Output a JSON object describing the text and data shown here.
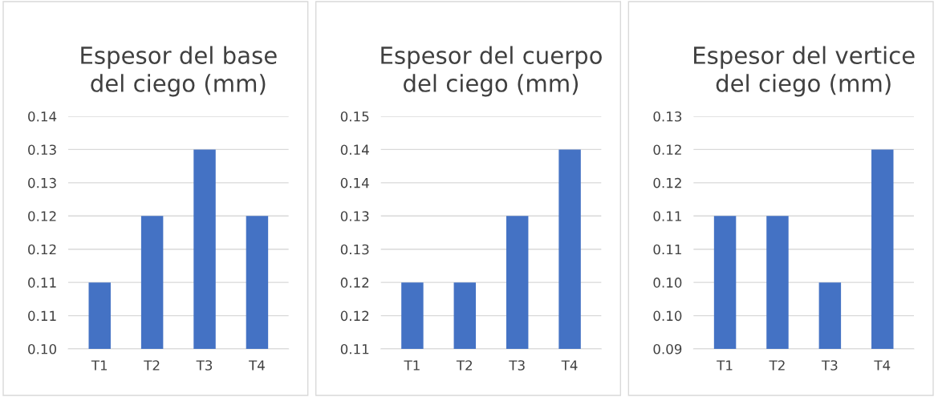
{
  "chart_data": [
    {
      "type": "bar",
      "title": "Espesor del base\ndel ciego (mm)",
      "categories": [
        "T1",
        "T2",
        "T3",
        "T4"
      ],
      "values": [
        0.11,
        0.12,
        0.13,
        0.12
      ],
      "color": "#4472c4",
      "ylim": [
        0.1,
        0.135
      ],
      "yticks": [
        {
          "value": 0.1,
          "label": "0.10"
        },
        {
          "value": 0.105,
          "label": "0.11"
        },
        {
          "value": 0.11,
          "label": "0.11"
        },
        {
          "value": 0.115,
          "label": "0.12"
        },
        {
          "value": 0.12,
          "label": "0.12"
        },
        {
          "value": 0.125,
          "label": "0.13"
        },
        {
          "value": 0.13,
          "label": "0.13"
        },
        {
          "value": 0.135,
          "label": "0.14"
        }
      ],
      "grid": "y"
    },
    {
      "type": "bar",
      "title": "Espesor del cuerpo\ndel ciego (mm)",
      "categories": [
        "T1",
        "T2",
        "T3",
        "T4"
      ],
      "values": [
        0.12,
        0.12,
        0.13,
        0.14
      ],
      "color": "#4472c4",
      "ylim": [
        0.11,
        0.145
      ],
      "yticks": [
        {
          "value": 0.11,
          "label": "0.11"
        },
        {
          "value": 0.115,
          "label": "0.12"
        },
        {
          "value": 0.12,
          "label": "0.12"
        },
        {
          "value": 0.125,
          "label": "0.13"
        },
        {
          "value": 0.13,
          "label": "0.13"
        },
        {
          "value": 0.135,
          "label": "0.14"
        },
        {
          "value": 0.14,
          "label": "0.14"
        },
        {
          "value": 0.145,
          "label": "0.15"
        }
      ],
      "grid": "y"
    },
    {
      "type": "bar",
      "title": "Espesor del vertice\ndel ciego (mm)",
      "categories": [
        "T1",
        "T2",
        "T3",
        "T4"
      ],
      "values": [
        0.11,
        0.11,
        0.1,
        0.12
      ],
      "color": "#4472c4",
      "ylim": [
        0.09,
        0.125
      ],
      "yticks": [
        {
          "value": 0.09,
          "label": "0.09"
        },
        {
          "value": 0.095,
          "label": "0.10"
        },
        {
          "value": 0.1,
          "label": "0.10"
        },
        {
          "value": 0.105,
          "label": "0.11"
        },
        {
          "value": 0.11,
          "label": "0.11"
        },
        {
          "value": 0.115,
          "label": "0.12"
        },
        {
          "value": 0.12,
          "label": "0.12"
        },
        {
          "value": 0.125,
          "label": "0.13"
        }
      ],
      "grid": "y"
    }
  ]
}
